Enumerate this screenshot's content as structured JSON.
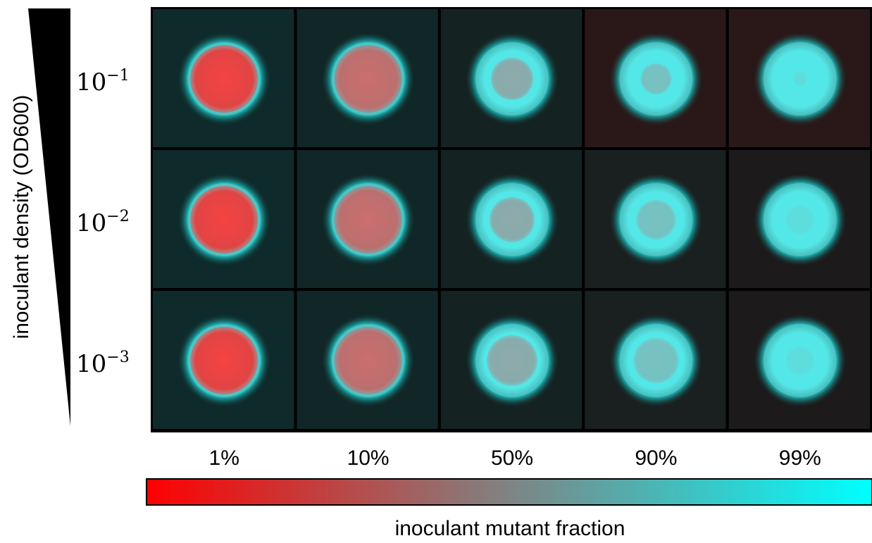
{
  "y_axis_label": "inoculant density (OD600)",
  "rows": [
    {
      "base": "10",
      "exponent": "−1"
    },
    {
      "base": "10",
      "exponent": "−2"
    },
    {
      "base": "10",
      "exponent": "−3"
    }
  ],
  "columns": [
    "1%",
    "10%",
    "50%",
    "90%",
    "99%"
  ],
  "colorbar_label": "inoculant mutant fraction"
}
